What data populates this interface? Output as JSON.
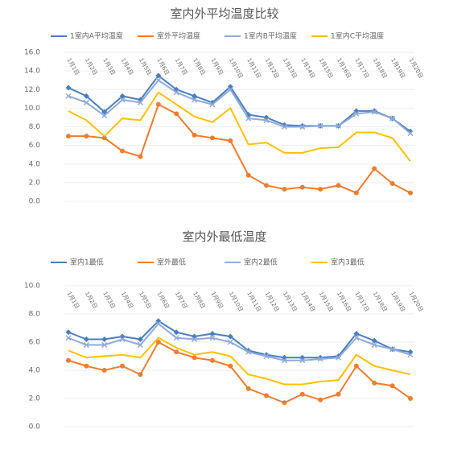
{
  "chart_data": [
    {
      "type": "line",
      "title": "室内外平均温度比较",
      "categories": [
        "1月1日",
        "1月2日",
        "1月3日",
        "1月4日",
        "1月5日",
        "1月6日",
        "1月7日",
        "1月8日",
        "1月9日",
        "1月10日",
        "1月11日",
        "1月12日",
        "1月13日",
        "1月14日",
        "1月15日",
        "1月16日",
        "1月17日",
        "1月18日",
        "1月19日",
        "1月20日"
      ],
      "series": [
        {
          "name": "1室内A平均温度",
          "color": "#4a7ebb",
          "values": [
            12.2,
            11.3,
            9.6,
            11.3,
            10.9,
            13.5,
            12.0,
            11.3,
            10.6,
            12.3,
            9.3,
            9.0,
            8.2,
            8.1,
            8.1,
            8.1,
            9.7,
            9.7,
            8.9,
            7.5
          ]
        },
        {
          "name": "室外平均温度",
          "color": "#ed7d31",
          "values": [
            7.0,
            7.0,
            6.8,
            5.4,
            4.8,
            10.4,
            9.4,
            7.1,
            6.8,
            6.5,
            2.8,
            1.7,
            1.3,
            1.5,
            1.3,
            1.7,
            0.9,
            3.5,
            1.9,
            0.9
          ]
        },
        {
          "name": "1室内B平均温度",
          "color": "#8faadc",
          "values": [
            11.3,
            10.6,
            9.2,
            10.9,
            10.6,
            13.0,
            11.7,
            10.9,
            10.4,
            12.0,
            8.9,
            8.7,
            8.0,
            8.0,
            8.1,
            8.1,
            9.4,
            9.6,
            8.9,
            7.3
          ]
        },
        {
          "name": "1室内C平均温度",
          "color": "#ffc000",
          "values": [
            9.7,
            8.7,
            7.0,
            8.9,
            8.7,
            11.7,
            10.4,
            9.1,
            8.5,
            10.0,
            6.1,
            6.3,
            5.2,
            5.2,
            5.7,
            5.8,
            7.4,
            7.4,
            6.8,
            4.3
          ]
        }
      ],
      "ylim": [
        0,
        16
      ],
      "yticks": [
        {
          "value": 0,
          "label": "0.0"
        },
        {
          "value": 2,
          "label": "2.0"
        },
        {
          "value": 4,
          "label": "4.0"
        },
        {
          "value": 6,
          "label": "6.0"
        },
        {
          "value": 8,
          "label": "8.0"
        },
        {
          "value": 10,
          "label": "10.0"
        },
        {
          "value": 12,
          "label": "12.0"
        },
        {
          "value": 14,
          "label": "14.0"
        },
        {
          "value": 16,
          "label": "16.0"
        }
      ],
      "legend": "top"
    },
    {
      "type": "line",
      "title": "室内外最低温度",
      "categories": [
        "1月1日",
        "1月2日",
        "1月3日",
        "1月4日",
        "1月5日",
        "1月6日",
        "1月7日",
        "1月8日",
        "1月9日",
        "1月10日",
        "1月11日",
        "1月12日",
        "1月13日",
        "1月14日",
        "1月15日",
        "1月16日",
        "1月17日",
        "1月18日",
        "1月19日",
        "1月20日"
      ],
      "series": [
        {
          "name": "室内1最低",
          "color": "#4a7ebb",
          "values": [
            6.7,
            6.2,
            6.2,
            6.4,
            6.2,
            7.5,
            6.7,
            6.4,
            6.6,
            6.4,
            5.4,
            5.1,
            4.9,
            4.9,
            4.9,
            5.0,
            6.6,
            6.1,
            5.5,
            5.3
          ]
        },
        {
          "name": "室外最低",
          "color": "#ed7d31",
          "values": [
            4.7,
            4.3,
            4.0,
            4.3,
            3.7,
            6.0,
            5.3,
            4.9,
            4.7,
            4.3,
            2.7,
            2.2,
            1.7,
            2.3,
            1.9,
            2.3,
            4.3,
            3.1,
            2.9,
            2.0
          ]
        },
        {
          "name": "室内2最低",
          "color": "#8faadc",
          "values": [
            6.3,
            5.8,
            5.8,
            6.2,
            5.8,
            7.3,
            6.3,
            6.2,
            6.3,
            6.0,
            5.3,
            5.0,
            4.7,
            4.7,
            4.8,
            4.9,
            6.3,
            5.8,
            5.5,
            5.1
          ]
        },
        {
          "name": "室内3最低",
          "color": "#ffc000",
          "values": [
            5.4,
            4.9,
            5.0,
            5.1,
            4.9,
            6.3,
            5.6,
            5.1,
            5.3,
            5.0,
            3.7,
            3.4,
            3.0,
            3.0,
            3.2,
            3.3,
            5.1,
            4.3,
            4.0,
            3.7
          ]
        }
      ],
      "ylim": [
        0,
        10
      ],
      "yticks": [
        {
          "value": 0,
          "label": "0.0"
        },
        {
          "value": 2,
          "label": "2.0"
        },
        {
          "value": 4,
          "label": "4.0"
        },
        {
          "value": 6,
          "label": "6.0"
        },
        {
          "value": 8,
          "label": "8.0"
        },
        {
          "value": 10,
          "label": "10.0"
        }
      ],
      "legend": "top"
    }
  ]
}
